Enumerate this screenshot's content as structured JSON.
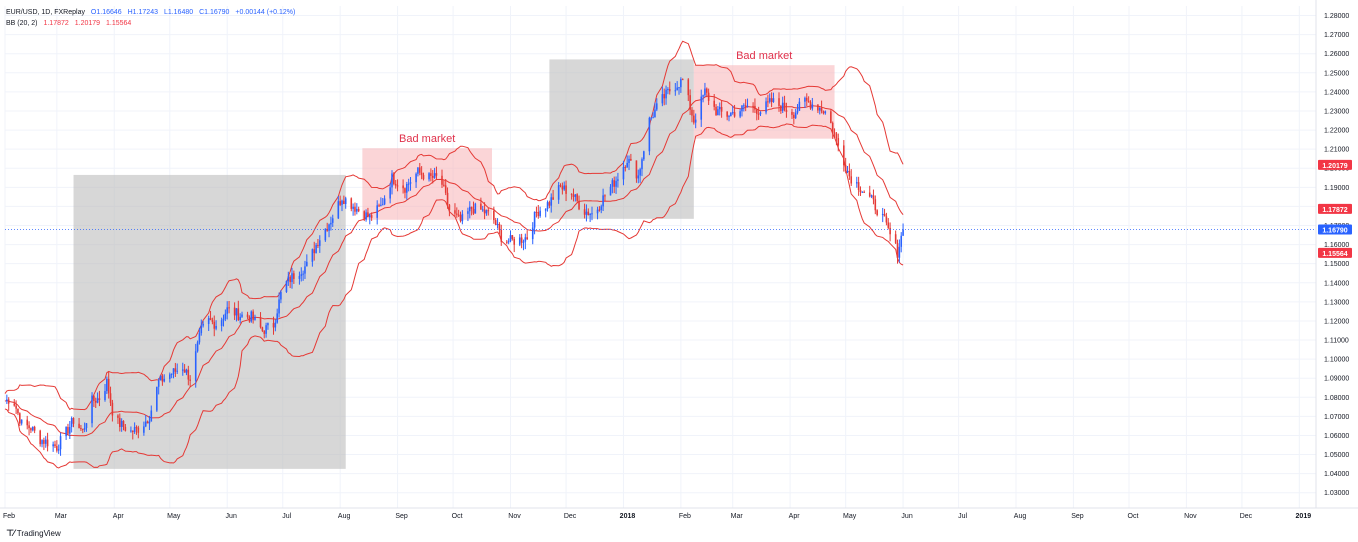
{
  "legend": {
    "symbol": "EUR/USD, 1D, FXReplay",
    "open": "O1.16646",
    "high": "H1.17243",
    "low": "L1.16480",
    "close": "C1.16790",
    "change": "+0.00144 (+0.12%)",
    "indicator": "BB (20, 2)",
    "bb_mid": "1.17872",
    "bb_upper": "1.20179",
    "bb_lower": "1.15564"
  },
  "brand": "TradingView",
  "chart_data": {
    "type": "candlestick",
    "symbol": "EUR/USD",
    "timeframe": "1D",
    "x_ticks": [
      "Feb",
      "Mar",
      "Apr",
      "May",
      "Jun",
      "Jul",
      "Aug",
      "Sep",
      "Oct",
      "Nov",
      "Dec",
      "2018",
      "Feb",
      "Mar",
      "Apr",
      "May",
      "Jun",
      "Jul",
      "Aug",
      "Sep",
      "Oct",
      "Nov",
      "Dec",
      "2019"
    ],
    "y_ticks": [
      "1.03000",
      "1.04000",
      "1.05000",
      "1.06000",
      "1.07000",
      "1.08000",
      "1.09000",
      "1.10000",
      "1.11000",
      "1.12000",
      "1.13000",
      "1.14000",
      "1.15000",
      "1.16000",
      "1.17000",
      "1.18000",
      "1.19000",
      "1.20000",
      "1.21000",
      "1.22000",
      "1.23000",
      "1.24000",
      "1.25000",
      "1.26000",
      "1.27000",
      "1.28000"
    ],
    "ylim": [
      1.022,
      1.285
    ],
    "x_range": [
      "2017-02-01",
      "2019-01-10"
    ],
    "price_labels": [
      {
        "value": 1.20179,
        "label": "1.20179",
        "color": "#f23645"
      },
      {
        "value": 1.17872,
        "label": "1.17872",
        "color": "#f23645"
      },
      {
        "value": 1.1679,
        "label": "1.16790",
        "color": "#2962ff"
      },
      {
        "value": 1.15564,
        "label": "1.15564",
        "color": "#f23645"
      }
    ],
    "close_price": 1.1679,
    "bollinger": {
      "period": 20,
      "stddev": 2
    },
    "gray_zones": [
      {
        "x_start": "2017-03-10",
        "x_end": "2017-08-04",
        "y_low": 1.0425,
        "y_high": 1.1965
      },
      {
        "x_start": "2017-11-22",
        "x_end": "2018-02-08",
        "y_low": 1.1735,
        "y_high": 1.257
      }
    ],
    "bad_market_zones": [
      {
        "label": "Bad market",
        "x_start": "2017-08-13",
        "x_end": "2017-10-22",
        "y_low": 1.173,
        "y_high": 1.2105
      },
      {
        "label": "Bad market",
        "x_start": "2018-02-08",
        "x_end": "2018-04-25",
        "y_low": 1.2155,
        "y_high": 1.254
      }
    ],
    "price_path": [
      [
        "2017-02-01",
        1.078
      ],
      [
        "2017-02-05",
        1.08
      ],
      [
        "2017-02-10",
        1.066
      ],
      [
        "2017-02-15",
        1.064
      ],
      [
        "2017-02-20",
        1.058
      ],
      [
        "2017-02-25",
        1.056
      ],
      [
        "2017-03-01",
        1.054
      ],
      [
        "2017-03-05",
        1.06
      ],
      [
        "2017-03-10",
        1.068
      ],
      [
        "2017-03-15",
        1.062
      ],
      [
        "2017-03-20",
        1.078
      ],
      [
        "2017-03-25",
        1.08
      ],
      [
        "2017-03-28",
        1.088
      ],
      [
        "2017-04-01",
        1.068
      ],
      [
        "2017-04-10",
        1.062
      ],
      [
        "2017-04-15",
        1.064
      ],
      [
        "2017-04-20",
        1.07
      ],
      [
        "2017-04-25",
        1.088
      ],
      [
        "2017-05-01",
        1.092
      ],
      [
        "2017-05-08",
        1.096
      ],
      [
        "2017-05-12",
        1.09
      ],
      [
        "2017-05-18",
        1.115
      ],
      [
        "2017-05-22",
        1.12
      ],
      [
        "2017-05-27",
        1.118
      ],
      [
        "2017-06-01",
        1.126
      ],
      [
        "2017-06-08",
        1.123
      ],
      [
        "2017-06-14",
        1.122
      ],
      [
        "2017-06-20",
        1.115
      ],
      [
        "2017-06-26",
        1.118
      ],
      [
        "2017-07-01",
        1.138
      ],
      [
        "2017-07-08",
        1.145
      ],
      [
        "2017-07-14",
        1.149
      ],
      [
        "2017-07-20",
        1.162
      ],
      [
        "2017-07-27",
        1.173
      ],
      [
        "2017-08-02",
        1.185
      ],
      [
        "2017-08-06",
        1.182
      ],
      [
        "2017-08-11",
        1.178
      ],
      [
        "2017-08-17",
        1.174
      ],
      [
        "2017-08-23",
        1.18
      ],
      [
        "2017-08-29",
        1.195
      ],
      [
        "2017-09-05",
        1.19
      ],
      [
        "2017-09-12",
        1.198
      ],
      [
        "2017-09-18",
        1.195
      ],
      [
        "2017-09-24",
        1.195
      ],
      [
        "2017-09-29",
        1.178
      ],
      [
        "2017-10-05",
        1.172
      ],
      [
        "2017-10-11",
        1.179
      ],
      [
        "2017-10-16",
        1.178
      ],
      [
        "2017-10-22",
        1.175
      ],
      [
        "2017-10-28",
        1.162
      ],
      [
        "2017-11-04",
        1.162
      ],
      [
        "2017-11-10",
        1.164
      ],
      [
        "2017-11-15",
        1.177
      ],
      [
        "2017-11-22",
        1.182
      ],
      [
        "2017-11-28",
        1.19
      ],
      [
        "2017-12-04",
        1.187
      ],
      [
        "2017-12-10",
        1.178
      ],
      [
        "2017-12-16",
        1.176
      ],
      [
        "2017-12-22",
        1.186
      ],
      [
        "2017-12-28",
        1.194
      ],
      [
        "2018-01-03",
        1.205
      ],
      [
        "2018-01-09",
        1.196
      ],
      [
        "2018-01-15",
        1.225
      ],
      [
        "2018-01-21",
        1.235
      ],
      [
        "2018-01-27",
        1.242
      ],
      [
        "2018-02-02",
        1.246
      ],
      [
        "2018-02-08",
        1.225
      ],
      [
        "2018-02-14",
        1.24
      ],
      [
        "2018-02-20",
        1.23
      ],
      [
        "2018-02-26",
        1.228
      ],
      [
        "2018-03-04",
        1.23
      ],
      [
        "2018-03-10",
        1.233
      ],
      [
        "2018-03-16",
        1.23
      ],
      [
        "2018-03-22",
        1.235
      ],
      [
        "2018-03-28",
        1.232
      ],
      [
        "2018-04-03",
        1.229
      ],
      [
        "2018-04-09",
        1.235
      ],
      [
        "2018-04-15",
        1.233
      ],
      [
        "2018-04-21",
        1.229
      ],
      [
        "2018-04-27",
        1.212
      ],
      [
        "2018-05-03",
        1.196
      ],
      [
        "2018-05-09",
        1.19
      ],
      [
        "2018-05-15",
        1.183
      ],
      [
        "2018-05-21",
        1.174
      ],
      [
        "2018-05-25",
        1.165
      ],
      [
        "2018-05-29",
        1.156
      ],
      [
        "2018-06-01",
        1.1679
      ]
    ]
  }
}
